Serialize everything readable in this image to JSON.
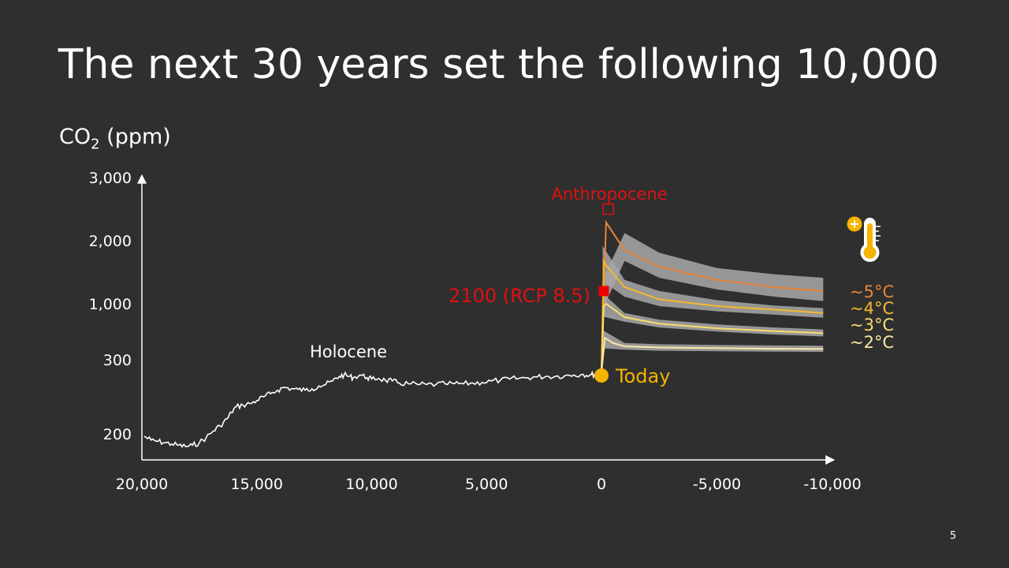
{
  "title": "The next 30 years set the following 10,000",
  "page_number": "5",
  "chart_data": {
    "type": "line",
    "title": "The next 30 years set the following 10,000",
    "ylabel_main": "CO",
    "ylabel_sub": "2",
    "ylabel_unit": "(ppm)",
    "x_ticks": [
      {
        "value": 20000,
        "label": "20,000"
      },
      {
        "value": 15000,
        "label": "15,000"
      },
      {
        "value": 10000,
        "label": "10,000"
      },
      {
        "value": 5000,
        "label": "5,000"
      },
      {
        "value": 0,
        "label": "0"
      },
      {
        "value": -5000,
        "label": "-5,000"
      },
      {
        "value": -10000,
        "label": "-10,000"
      }
    ],
    "y_ticks": [
      {
        "value": 200,
        "label": "200"
      },
      {
        "value": 300,
        "label": "300"
      },
      {
        "value": 1000,
        "label": "1,000"
      },
      {
        "value": 2000,
        "label": "2,000"
      },
      {
        "value": 3000,
        "label": "3,000"
      }
    ],
    "xlim": [
      20000,
      -10000
    ],
    "ylim": [
      180,
      3000
    ],
    "annotations": {
      "holocene": "Holocene",
      "anthropocene": "Anthropocene",
      "rcp": "2100 (RCP 8.5)",
      "today": "Today"
    },
    "holocene_series": [
      [
        19900,
        198
      ],
      [
        19600,
        195
      ],
      [
        19300,
        194
      ],
      [
        19000,
        193
      ],
      [
        18700,
        192
      ],
      [
        18400,
        191
      ],
      [
        18100,
        190
      ],
      [
        17800,
        191
      ],
      [
        17500,
        193
      ],
      [
        17200,
        197
      ],
      [
        16900,
        203
      ],
      [
        16600,
        209
      ],
      [
        16300,
        217
      ],
      [
        16100,
        225
      ],
      [
        15900,
        232
      ],
      [
        15600,
        234
      ],
      [
        15300,
        236
      ],
      [
        15000,
        240
      ],
      [
        14700,
        245
      ],
      [
        14400,
        249
      ],
      [
        14100,
        254
      ],
      [
        13800,
        258
      ],
      [
        13500,
        256
      ],
      [
        13200,
        255
      ],
      [
        12900,
        254
      ],
      [
        12600,
        256
      ],
      [
        12300,
        260
      ],
      [
        12000,
        262
      ],
      [
        11700,
        267
      ],
      [
        11400,
        274
      ],
      [
        11200,
        276
      ],
      [
        11000,
        274
      ],
      [
        10800,
        272
      ],
      [
        10500,
        276
      ],
      [
        10200,
        272
      ],
      [
        10000,
        270
      ],
      [
        9700,
        271
      ],
      [
        9400,
        268
      ],
      [
        9100,
        267
      ],
      [
        8800,
        264
      ],
      [
        8400,
        263
      ],
      [
        8000,
        262
      ],
      [
        7600,
        262
      ],
      [
        7200,
        262
      ],
      [
        6800,
        263
      ],
      [
        6400,
        263
      ],
      [
        6000,
        263
      ],
      [
        5600,
        264
      ],
      [
        5200,
        265
      ],
      [
        4800,
        267
      ],
      [
        4400,
        268
      ],
      [
        4000,
        270
      ],
      [
        3600,
        271
      ],
      [
        3200,
        272
      ],
      [
        2800,
        273
      ],
      [
        2400,
        274
      ],
      [
        2000,
        274
      ],
      [
        1600,
        275
      ],
      [
        1200,
        276
      ],
      [
        800,
        277
      ],
      [
        500,
        276
      ],
      [
        300,
        277
      ],
      [
        100,
        278
      ]
    ],
    "today_point": {
      "x": 0,
      "y": 280
    },
    "rcp_point": {
      "x": -100,
      "y": 1150
    },
    "anthropocene_marker": {
      "x": -300,
      "y": 2450
    },
    "series": [
      {
        "label": "~5°C",
        "color": "#e8843a",
        "values": [
          [
            0,
            280
          ],
          [
            -100,
            1100
          ],
          [
            -200,
            2250
          ],
          [
            -1000,
            1800
          ],
          [
            -2500,
            1500
          ],
          [
            -5000,
            1300
          ],
          [
            -7500,
            1200
          ],
          [
            -9600,
            1150
          ]
        ],
        "band": [
          [
            -1000,
            2100,
            1600
          ],
          [
            -2500,
            1750,
            1330
          ],
          [
            -5000,
            1480,
            1170
          ],
          [
            -7500,
            1380,
            1080
          ],
          [
            -9600,
            1330,
            1030
          ]
        ]
      },
      {
        "label": "~4°C",
        "color": "#f5b82e",
        "values": [
          [
            0,
            280
          ],
          [
            -100,
            1600
          ],
          [
            -250,
            1500
          ],
          [
            -1000,
            1200
          ],
          [
            -2500,
            1050
          ],
          [
            -5000,
            950
          ],
          [
            -7500,
            880
          ],
          [
            -9600,
            820
          ]
        ],
        "band": [
          [
            -1000,
            1300,
            1080
          ],
          [
            -2500,
            1150,
            950
          ],
          [
            -5000,
            1040,
            850
          ],
          [
            -7500,
            960,
            790
          ],
          [
            -9600,
            910,
            740
          ]
        ]
      },
      {
        "label": "~3°C",
        "color": "#fbdc6c",
        "values": [
          [
            0,
            280
          ],
          [
            -100,
            950
          ],
          [
            -200,
            1000
          ],
          [
            -1000,
            750
          ],
          [
            -2500,
            650
          ],
          [
            -5000,
            590
          ],
          [
            -7500,
            555
          ],
          [
            -9600,
            530
          ]
        ],
        "band": [
          [
            -1000,
            820,
            680
          ],
          [
            -2500,
            710,
            600
          ],
          [
            -5000,
            640,
            550
          ],
          [
            -7500,
            600,
            515
          ],
          [
            -9600,
            575,
            495
          ]
        ]
      },
      {
        "label": "~2°C",
        "color": "#fbe8a8",
        "values": [
          [
            0,
            280
          ],
          [
            -150,
            480
          ],
          [
            -500,
            430
          ],
          [
            -1000,
            400
          ],
          [
            -2500,
            390
          ],
          [
            -5000,
            385
          ],
          [
            -7500,
            380
          ],
          [
            -9600,
            378
          ]
        ],
        "band": [
          [
            -1000,
            430,
            372
          ],
          [
            -2500,
            418,
            364
          ],
          [
            -5000,
            412,
            360
          ],
          [
            -7500,
            408,
            357
          ],
          [
            -9600,
            406,
            355
          ]
        ]
      }
    ]
  }
}
